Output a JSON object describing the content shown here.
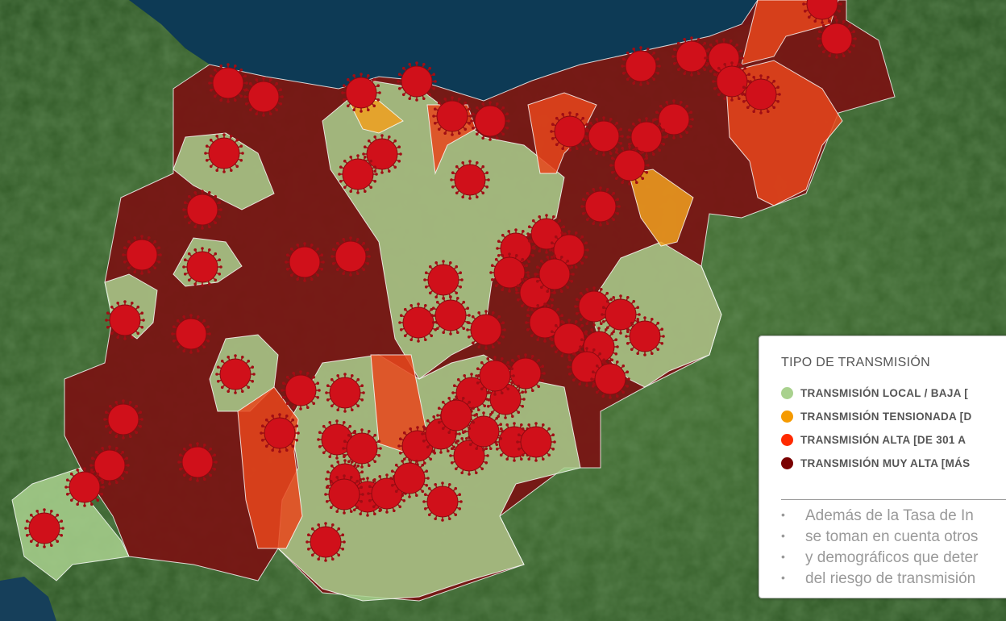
{
  "map": {
    "colors": {
      "local_baja": "#a9d18e",
      "tensionada": "#f0a020",
      "alta": "#e8461c",
      "muy_alta": "#7a1212",
      "virus_marker": "#d0101a",
      "sea": "#0d3a55"
    },
    "marker_icon": "virus-icon"
  },
  "legend": {
    "title": "TIPO DE TRANSMISIÓN",
    "items": [
      {
        "label": "TRANSMISIÓN LOCAL / BAJA [",
        "color": "#a9d18e"
      },
      {
        "label": "TRANSMISIÓN TENSIONADA [D",
        "color": "#f59a00"
      },
      {
        "label": "TRANSMISIÓN ALTA [DE 301 A",
        "color": "#ff2a00"
      },
      {
        "label": "TRANSMISIÓN MUY ALTA [MÁS",
        "color": "#7a0000"
      }
    ],
    "notes": [
      "Además de la Tasa de In",
      "se toman en cuenta otros",
      "y demográficos que deter",
      "del riesgo de transmisión"
    ]
  }
}
